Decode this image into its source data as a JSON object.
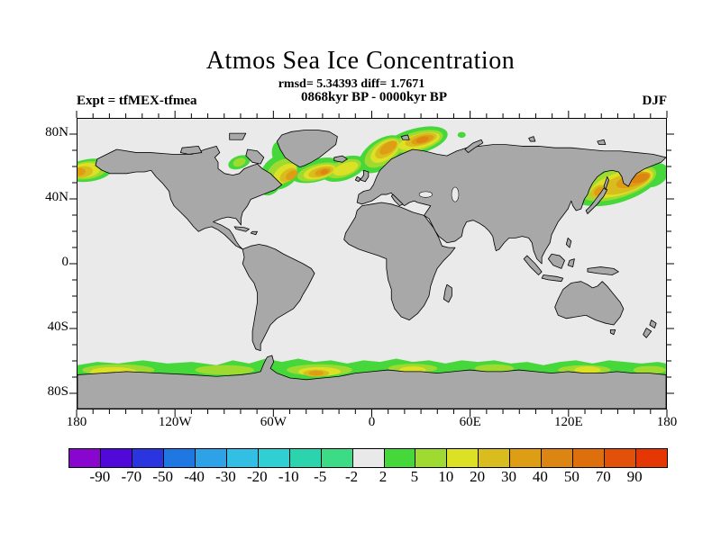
{
  "header": {
    "title": "Atmos Sea Ice Concentration",
    "stats": "rmsd= 5.34393 diff= 1.7671",
    "period": "0868kyr BP - 0000kyr BP",
    "experiment": "Expt = tfMEX-tfmea",
    "season": "DJF"
  },
  "axes": {
    "x": {
      "minor_step_deg": 10,
      "major_step_deg": 60,
      "labels": [
        {
          "text": "180",
          "lon": -180
        },
        {
          "text": "120W",
          "lon": -120
        },
        {
          "text": "60W",
          "lon": -60
        },
        {
          "text": "0",
          "lon": 0
        },
        {
          "text": "60E",
          "lon": 60
        },
        {
          "text": "120E",
          "lon": 120
        },
        {
          "text": "180",
          "lon": 180
        }
      ]
    },
    "y": {
      "minor_step_deg": 10,
      "major_step_deg": 40,
      "labels": [
        {
          "text": "80N",
          "lat": 80
        },
        {
          "text": "40N",
          "lat": 40
        },
        {
          "text": "0",
          "lat": 0
        },
        {
          "text": "40S",
          "lat": -40
        },
        {
          "text": "80S",
          "lat": -80
        }
      ]
    }
  },
  "colorbar": {
    "tick_labels": [
      "-90",
      "-70",
      "-50",
      "-40",
      "-30",
      "-20",
      "-10",
      "-5",
      "-2",
      "2",
      "5",
      "10",
      "20",
      "30",
      "40",
      "50",
      "70",
      "90"
    ],
    "cell_colors": [
      "#8806CE",
      "#5009D8",
      "#2A35DF",
      "#1F77E2",
      "#2EA2E6",
      "#33BFE4",
      "#2FCFD4",
      "#2BD4AC",
      "#3BDC85",
      "#E9E9E9",
      "#46D73A",
      "#9FDA31",
      "#DDE125",
      "#D9BD1E",
      "#DD9E16",
      "#DD8512",
      "#DD6F0D",
      "#E1510A",
      "#E53704"
    ]
  },
  "chart_data": {
    "type": "filled_contour_map",
    "title": "Atmos Sea Ice Concentration",
    "variable": "Sea ice concentration difference (%)",
    "stat_rmsd": 5.34393,
    "stat_diff": 1.7671,
    "period": "0868kyr BP - 0000kyr BP",
    "experiment": "tfMEX-tfmea",
    "season": "DJF",
    "projection": "equirectangular",
    "lon_range": [
      -180,
      180
    ],
    "lat_range": [
      -90,
      90
    ],
    "grid": false,
    "legend_position": "bottom horizontal colorbar",
    "contour_levels": [
      -90,
      -70,
      -50,
      -40,
      -30,
      -20,
      -10,
      -5,
      -2,
      2,
      5,
      10,
      20,
      30,
      40,
      50,
      70,
      90
    ],
    "palette": [
      "#8806CE",
      "#5009D8",
      "#2A35DF",
      "#1F77E2",
      "#2EA2E6",
      "#33BFE4",
      "#2FCFD4",
      "#2BD4AC",
      "#3BDC85",
      "#E9E9E9",
      "#46D73A",
      "#9FDA31",
      "#DDE125",
      "#D9BD1E",
      "#DD9E16",
      "#DD8512",
      "#DD6F0D",
      "#E1510A",
      "#E53704"
    ],
    "land_color": "#A8A8A8",
    "ocean_no_change_color": "#EAEAEA",
    "anomaly_regions": [
      {
        "region": "North Atlantic: Labrador Sea across south Greenland, Iceland, Norwegian Sea into Barents Sea (~45-80N)",
        "sign": "positive",
        "peak_value_range": "30-50"
      },
      {
        "region": "Davis Strait along west Greenland",
        "sign": "positive",
        "peak_value_range": "2-10"
      },
      {
        "region": "Gulf of St. Lawrence spot",
        "sign": "positive",
        "peak_value_range": "40-50"
      },
      {
        "region": "NW Pacific: Sea of Okhotsk / northern Japan Sea extending ENE to map edge (~40-60N)",
        "sign": "positive",
        "peak_value_range": "30-50"
      },
      {
        "region": "Bering Sea at western map edge near 180 (~50-62N)",
        "sign": "positive",
        "peak_value_range": "30-40"
      },
      {
        "region": "Hudson Strait / Foxe Basin patch",
        "sign": "positive",
        "peak_value_range": "2-10"
      },
      {
        "region": "Southern Ocean circumpolar band ~55-68S",
        "sign": "positive",
        "peak_value_range": "5-20, locally 30-40 in Weddell Sea sector"
      },
      {
        "region": "Svalbard and Arctic coastal spots, Kattegat spot",
        "sign": "positive",
        "peak_value_range": "2-5"
      }
    ]
  }
}
